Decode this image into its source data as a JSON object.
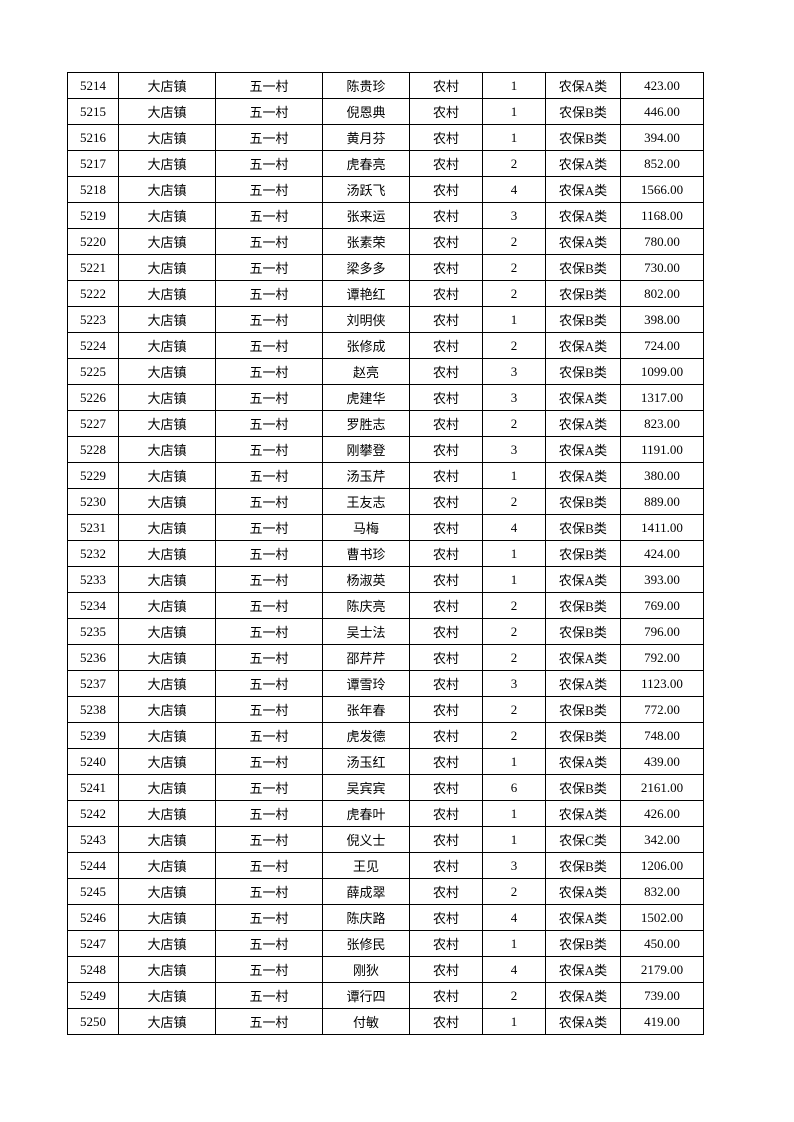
{
  "table": {
    "rows": [
      [
        "5214",
        "大店镇",
        "五一村",
        "陈贵珍",
        "农村",
        "1",
        "农保A类",
        "423.00"
      ],
      [
        "5215",
        "大店镇",
        "五一村",
        "倪恩典",
        "农村",
        "1",
        "农保B类",
        "446.00"
      ],
      [
        "5216",
        "大店镇",
        "五一村",
        "黄月芬",
        "农村",
        "1",
        "农保B类",
        "394.00"
      ],
      [
        "5217",
        "大店镇",
        "五一村",
        "虎春亮",
        "农村",
        "2",
        "农保A类",
        "852.00"
      ],
      [
        "5218",
        "大店镇",
        "五一村",
        "汤跃飞",
        "农村",
        "4",
        "农保A类",
        "1566.00"
      ],
      [
        "5219",
        "大店镇",
        "五一村",
        "张来运",
        "农村",
        "3",
        "农保A类",
        "1168.00"
      ],
      [
        "5220",
        "大店镇",
        "五一村",
        "张素荣",
        "农村",
        "2",
        "农保A类",
        "780.00"
      ],
      [
        "5221",
        "大店镇",
        "五一村",
        "梁多多",
        "农村",
        "2",
        "农保B类",
        "730.00"
      ],
      [
        "5222",
        "大店镇",
        "五一村",
        "谭艳红",
        "农村",
        "2",
        "农保B类",
        "802.00"
      ],
      [
        "5223",
        "大店镇",
        "五一村",
        "刘明侠",
        "农村",
        "1",
        "农保B类",
        "398.00"
      ],
      [
        "5224",
        "大店镇",
        "五一村",
        "张修成",
        "农村",
        "2",
        "农保A类",
        "724.00"
      ],
      [
        "5225",
        "大店镇",
        "五一村",
        "赵亮",
        "农村",
        "3",
        "农保B类",
        "1099.00"
      ],
      [
        "5226",
        "大店镇",
        "五一村",
        "虎建华",
        "农村",
        "3",
        "农保A类",
        "1317.00"
      ],
      [
        "5227",
        "大店镇",
        "五一村",
        "罗胜志",
        "农村",
        "2",
        "农保A类",
        "823.00"
      ],
      [
        "5228",
        "大店镇",
        "五一村",
        "刚攀登",
        "农村",
        "3",
        "农保A类",
        "1191.00"
      ],
      [
        "5229",
        "大店镇",
        "五一村",
        "汤玉芹",
        "农村",
        "1",
        "农保A类",
        "380.00"
      ],
      [
        "5230",
        "大店镇",
        "五一村",
        "王友志",
        "农村",
        "2",
        "农保B类",
        "889.00"
      ],
      [
        "5231",
        "大店镇",
        "五一村",
        "马梅",
        "农村",
        "4",
        "农保B类",
        "1411.00"
      ],
      [
        "5232",
        "大店镇",
        "五一村",
        "曹书珍",
        "农村",
        "1",
        "农保B类",
        "424.00"
      ],
      [
        "5233",
        "大店镇",
        "五一村",
        "杨淑英",
        "农村",
        "1",
        "农保A类",
        "393.00"
      ],
      [
        "5234",
        "大店镇",
        "五一村",
        "陈庆亮",
        "农村",
        "2",
        "农保B类",
        "769.00"
      ],
      [
        "5235",
        "大店镇",
        "五一村",
        "吴士法",
        "农村",
        "2",
        "农保B类",
        "796.00"
      ],
      [
        "5236",
        "大店镇",
        "五一村",
        "邵芹芹",
        "农村",
        "2",
        "农保A类",
        "792.00"
      ],
      [
        "5237",
        "大店镇",
        "五一村",
        "谭雪玲",
        "农村",
        "3",
        "农保A类",
        "1123.00"
      ],
      [
        "5238",
        "大店镇",
        "五一村",
        "张年春",
        "农村",
        "2",
        "农保B类",
        "772.00"
      ],
      [
        "5239",
        "大店镇",
        "五一村",
        "虎发德",
        "农村",
        "2",
        "农保B类",
        "748.00"
      ],
      [
        "5240",
        "大店镇",
        "五一村",
        "汤玉红",
        "农村",
        "1",
        "农保A类",
        "439.00"
      ],
      [
        "5241",
        "大店镇",
        "五一村",
        "吴宾宾",
        "农村",
        "6",
        "农保B类",
        "2161.00"
      ],
      [
        "5242",
        "大店镇",
        "五一村",
        "虎春叶",
        "农村",
        "1",
        "农保A类",
        "426.00"
      ],
      [
        "5243",
        "大店镇",
        "五一村",
        "倪义士",
        "农村",
        "1",
        "农保C类",
        "342.00"
      ],
      [
        "5244",
        "大店镇",
        "五一村",
        "王见",
        "农村",
        "3",
        "农保B类",
        "1206.00"
      ],
      [
        "5245",
        "大店镇",
        "五一村",
        "薛成翠",
        "农村",
        "2",
        "农保A类",
        "832.00"
      ],
      [
        "5246",
        "大店镇",
        "五一村",
        "陈庆路",
        "农村",
        "4",
        "农保A类",
        "1502.00"
      ],
      [
        "5247",
        "大店镇",
        "五一村",
        "张修民",
        "农村",
        "1",
        "农保B类",
        "450.00"
      ],
      [
        "5248",
        "大店镇",
        "五一村",
        "刚狄",
        "农村",
        "4",
        "农保A类",
        "2179.00"
      ],
      [
        "5249",
        "大店镇",
        "五一村",
        "谭行四",
        "农村",
        "2",
        "农保A类",
        "739.00"
      ],
      [
        "5250",
        "大店镇",
        "五一村",
        "付敏",
        "农村",
        "1",
        "农保A类",
        "419.00"
      ]
    ]
  }
}
